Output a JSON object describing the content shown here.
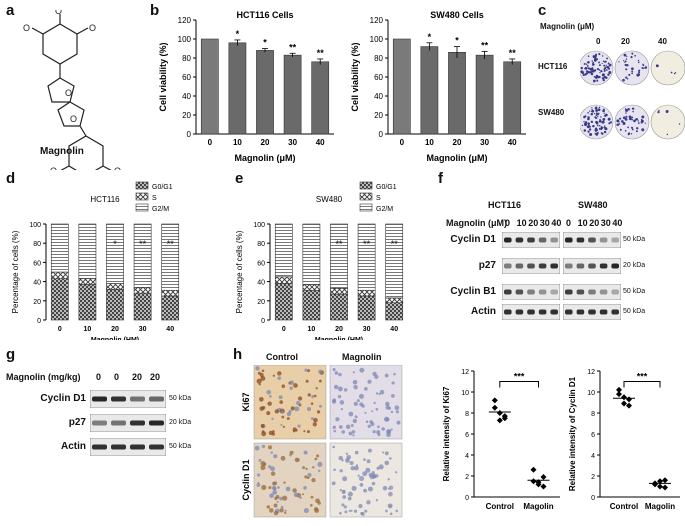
{
  "panels": {
    "a": {
      "letter": "a",
      "compound": "Magnolin"
    },
    "b": {
      "letter": "b"
    },
    "c": {
      "letter": "c",
      "header": "Magnolin (μM)",
      "cols": [
        "0",
        "20",
        "40"
      ],
      "rows": [
        "HCT116",
        "SW480"
      ]
    },
    "d": {
      "letter": "d"
    },
    "e": {
      "letter": "e"
    },
    "f": {
      "letter": "f",
      "title_left": "HCT116",
      "title_right": "SW480",
      "dose_label": "Magnolin (μM)",
      "doses": [
        "0",
        "10",
        "20",
        "30",
        "40"
      ],
      "bands": [
        "Cyclin D1",
        "p27",
        "Cyclin B1",
        "Actin"
      ],
      "kda": [
        "50 kDa",
        "20 kDa",
        "50 kDa",
        "50 kDa"
      ]
    },
    "g": {
      "letter": "g",
      "dose_label": "Magnolin (mg/kg)",
      "doses": [
        "0",
        "0",
        "20",
        "20"
      ],
      "bands": [
        "Cyclin D1",
        "p27",
        "Actin"
      ],
      "kda": [
        "50 kDa",
        "20 kDa",
        "50 kDa"
      ]
    },
    "h": {
      "letter": "h",
      "col_labels": [
        "Control",
        "Magnolin"
      ],
      "row_labels": [
        "Ki67",
        "Cyclin D1"
      ]
    }
  },
  "chart_data": [
    {
      "id": "b1",
      "type": "bar",
      "title": "HCT116 Cells",
      "xlabel": "Magnolin (μM)",
      "ylabel": "Cell viability (%)",
      "categories": [
        "0",
        "10",
        "20",
        "30",
        "40"
      ],
      "values": [
        100,
        96,
        88,
        83,
        76
      ],
      "errors": [
        0,
        3,
        2,
        2,
        3
      ],
      "sig": [
        "",
        "*",
        "*",
        "**",
        "**"
      ],
      "ylim": [
        0,
        120
      ],
      "yticks": [
        0,
        20,
        40,
        60,
        80,
        100,
        120
      ]
    },
    {
      "id": "b2",
      "type": "bar",
      "title": "SW480 Cells",
      "xlabel": "Magnolin (μM)",
      "ylabel": "Cell viability (%)",
      "categories": [
        "0",
        "10",
        "20",
        "30",
        "40"
      ],
      "values": [
        100,
        92,
        86,
        83,
        76
      ],
      "errors": [
        0,
        4,
        6,
        4,
        3
      ],
      "sig": [
        "",
        "*",
        "*",
        "**",
        "**"
      ],
      "ylim": [
        0,
        120
      ],
      "yticks": [
        0,
        20,
        40,
        60,
        80,
        100,
        120
      ]
    },
    {
      "id": "d",
      "type": "bar",
      "title": "HCT116",
      "xlabel": "Magnolin (HM)",
      "ylabel": "Percentage of cells (%)",
      "categories": [
        "0",
        "10",
        "20",
        "30",
        "40"
      ],
      "series": [
        {
          "name": "G0/G1",
          "values": [
            43,
            37,
            32,
            28,
            25
          ]
        },
        {
          "name": "S",
          "values": [
            7,
            6,
            6,
            6,
            6
          ]
        },
        {
          "name": "G2/M",
          "values": [
            50,
            57,
            62,
            66,
            69
          ]
        }
      ],
      "sig": [
        "",
        "",
        "*",
        "**",
        "**"
      ],
      "ylim": [
        0,
        100
      ],
      "yticks": [
        0,
        20,
        40,
        60,
        80,
        100
      ]
    },
    {
      "id": "e",
      "type": "bar",
      "title": "SW480",
      "xlabel": "Magnolin (HM)",
      "ylabel": "Percentage of cells (%)",
      "categories": [
        "0",
        "10",
        "20",
        "30",
        "40"
      ],
      "series": [
        {
          "name": "G0/G1",
          "values": [
            38,
            31,
            27,
            25,
            18
          ]
        },
        {
          "name": "S",
          "values": [
            7,
            6,
            6,
            6,
            5
          ]
        },
        {
          "name": "G2/M",
          "values": [
            55,
            63,
            67,
            69,
            77
          ]
        }
      ],
      "sig": [
        "",
        "",
        "**",
        "**",
        "**"
      ],
      "ylim": [
        0,
        100
      ],
      "yticks": [
        0,
        20,
        40,
        60,
        80,
        100
      ]
    },
    {
      "id": "h1",
      "type": "scatter",
      "ylabel": "Relative intensity of Ki67",
      "categories": [
        "Control",
        "Magolin"
      ],
      "points": [
        [
          8.5,
          7.3,
          7.7,
          9.2,
          8.0,
          7.5
        ],
        [
          1.5,
          1.2,
          1.9,
          2.6,
          1.4,
          1.0
        ]
      ],
      "means": [
        8.1,
        1.6
      ],
      "sig": "***",
      "ylim": [
        0,
        12
      ],
      "yticks": [
        0,
        2,
        4,
        6,
        8,
        10,
        12
      ]
    },
    {
      "id": "h2",
      "type": "scatter",
      "ylabel": "Relative intensity of Cyclin D1",
      "categories": [
        "Control",
        "Magolin"
      ],
      "points": [
        [
          9.8,
          8.9,
          9.3,
          10.2,
          9.5,
          8.7
        ],
        [
          1.3,
          1.0,
          1.6,
          1.2,
          1.5,
          0.9
        ]
      ],
      "means": [
        9.4,
        1.3
      ],
      "sig": "***",
      "ylim": [
        0,
        12
      ],
      "yticks": [
        0,
        2,
        4,
        6,
        8,
        10,
        12
      ]
    }
  ]
}
